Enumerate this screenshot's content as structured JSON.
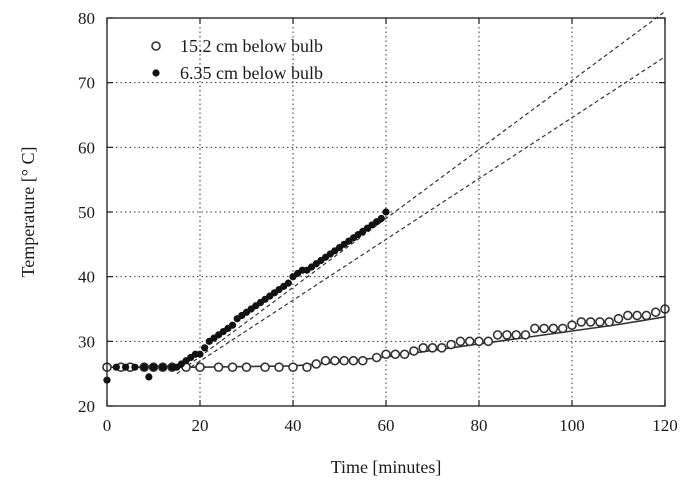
{
  "chart_data": {
    "type": "scatter",
    "title": "",
    "xlabel": "Time [minutes]",
    "ylabel": "Temperature [° C]",
    "xlim": [
      0,
      120
    ],
    "ylim": [
      20,
      80
    ],
    "xticks": [
      0,
      20,
      40,
      60,
      80,
      100,
      120
    ],
    "yticks": [
      20,
      30,
      40,
      50,
      60,
      70,
      80
    ],
    "grid": true,
    "legend_position": "top-left",
    "series": [
      {
        "name": "15.2 cm below bulb",
        "marker": "open-circle",
        "color": "#333333",
        "x": [
          0,
          3,
          5,
          8,
          10,
          12,
          14,
          17,
          20,
          24,
          27,
          30,
          34,
          37,
          40,
          43,
          45,
          47,
          49,
          51,
          53,
          55,
          58,
          60,
          62,
          64,
          66,
          68,
          70,
          72,
          74,
          76,
          78,
          80,
          82,
          84,
          86,
          88,
          90,
          92,
          94,
          96,
          98,
          100,
          102,
          104,
          106,
          108,
          110,
          112,
          114,
          116,
          118,
          120
        ],
        "y": [
          26,
          26,
          26,
          26,
          26,
          26,
          26,
          26,
          26,
          26,
          26,
          26,
          26,
          26,
          26,
          26,
          26.5,
          27,
          27,
          27,
          27,
          27,
          27.5,
          28,
          28,
          28,
          28.5,
          29,
          29,
          29,
          29.5,
          30,
          30,
          30,
          30,
          31,
          31,
          31,
          31,
          32,
          32,
          32,
          32,
          32.5,
          33,
          33,
          33,
          33,
          33.5,
          34,
          34,
          34,
          34.5,
          35
        ]
      },
      {
        "name": "6.35 cm below bulb",
        "marker": "filled-circle",
        "color": "#111111",
        "x": [
          0,
          2,
          4,
          6,
          8,
          9,
          10,
          12,
          14,
          15,
          16,
          17,
          18,
          19,
          20,
          21,
          22,
          23,
          24,
          25,
          26,
          27,
          28,
          29,
          30,
          31,
          32,
          33,
          34,
          35,
          36,
          37,
          38,
          39,
          40,
          41,
          42,
          43,
          44,
          45,
          46,
          47,
          48,
          49,
          50,
          51,
          52,
          53,
          54,
          55,
          56,
          57,
          58,
          59,
          60
        ],
        "y": [
          24,
          26,
          26,
          26,
          26,
          24.5,
          26,
          26,
          26,
          26,
          26.5,
          27,
          27.5,
          28,
          28,
          29,
          30,
          30.5,
          31,
          31.5,
          32,
          32.5,
          33.5,
          34,
          34.5,
          35,
          35.5,
          36,
          36.5,
          37,
          37.5,
          38,
          38.5,
          39,
          40,
          40.5,
          41,
          41,
          41.5,
          42,
          42.5,
          43,
          43.5,
          44,
          44.5,
          45,
          45.5,
          46,
          46.5,
          47,
          47.5,
          48,
          48.5,
          49,
          50
        ]
      }
    ],
    "fit_lines": [
      {
        "style": "solid",
        "x": [
          0,
          20,
          40,
          50,
          60,
          70,
          80,
          90,
          100,
          110,
          120
        ],
        "y": [
          26,
          26,
          26.2,
          26.8,
          27.6,
          28.6,
          29.6,
          30.6,
          31.6,
          32.6,
          33.8
        ]
      },
      {
        "style": "dashed",
        "x": [
          15,
          120
        ],
        "y": [
          25,
          81
        ]
      },
      {
        "style": "dashed",
        "x": [
          18,
          120
        ],
        "y": [
          26,
          74
        ]
      }
    ]
  }
}
